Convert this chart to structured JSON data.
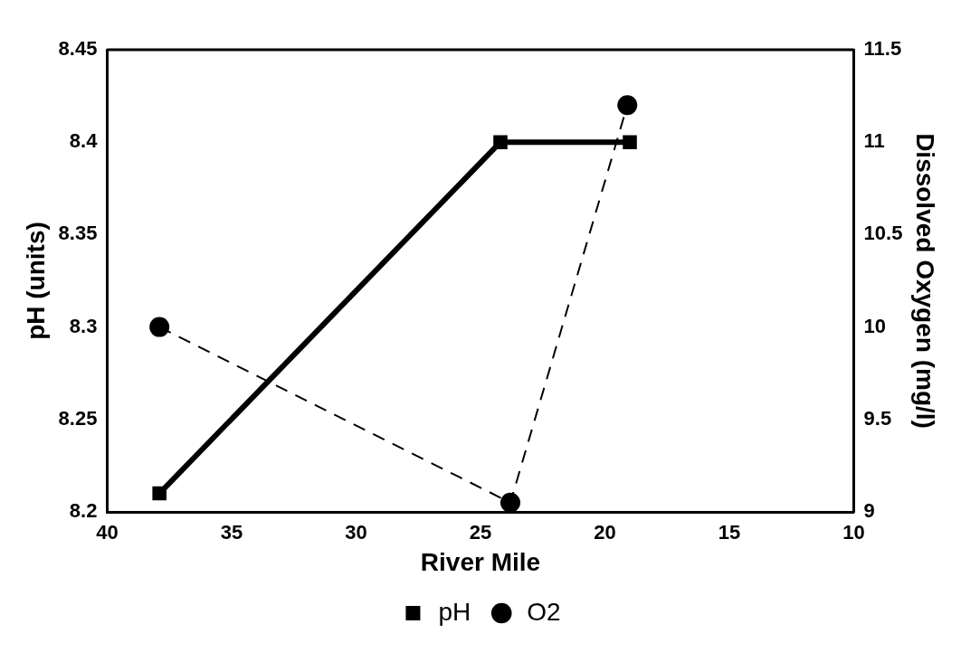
{
  "chart_data": {
    "type": "line",
    "xlabel": "River Mile",
    "ylabel": "pH (units)",
    "y2label": "Dissolved Oxygen (mg/l)",
    "xlim": [
      40,
      10
    ],
    "xticks": [
      40,
      35,
      30,
      25,
      20,
      15,
      10
    ],
    "ylim": [
      8.2,
      8.45
    ],
    "yticks": [
      8.2,
      8.25,
      8.3,
      8.35,
      8.4,
      8.45
    ],
    "y2lim": [
      9,
      11.5
    ],
    "y2ticks": [
      9,
      9.5,
      10,
      10.5,
      11,
      11.5
    ],
    "grid": false,
    "legend": "bottom",
    "series": [
      {
        "name": "pH",
        "color": "#000000",
        "x": [
          37.9,
          24.2,
          19.0
        ],
        "values": [
          8.21,
          8.4,
          8.4
        ],
        "marker": "square",
        "line_style": "solid"
      },
      {
        "name": "O2",
        "color": "#000000",
        "x": [
          37.9,
          23.8,
          19.1
        ],
        "values": [
          10.0,
          9.05,
          11.2
        ],
        "marker": "circle",
        "line_style": "dashed",
        "axis": "y2"
      }
    ]
  }
}
